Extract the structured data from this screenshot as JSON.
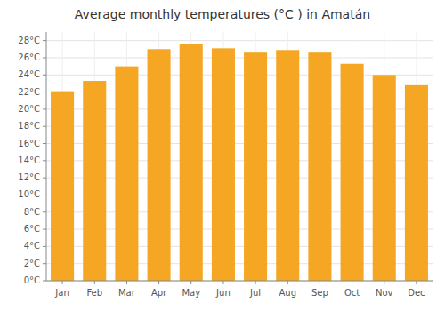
{
  "chart_data": {
    "type": "bar",
    "title": "Average monthly temperatures (°C ) in Amatán",
    "categories": [
      "Jan",
      "Feb",
      "Mar",
      "Apr",
      "May",
      "Jun",
      "Jul",
      "Aug",
      "Sep",
      "Oct",
      "Nov",
      "Dec"
    ],
    "values": [
      22.1,
      23.3,
      25.0,
      27.0,
      27.6,
      27.1,
      26.6,
      26.9,
      26.6,
      25.3,
      24.0,
      22.8
    ],
    "color": "#F5A623",
    "ylim": [
      0,
      29
    ],
    "yticks": [
      {
        "value": 0,
        "label": "0°C"
      },
      {
        "value": 2,
        "label": "2°C"
      },
      {
        "value": 4,
        "label": "4°C"
      },
      {
        "value": 6,
        "label": "6°C"
      },
      {
        "value": 8,
        "label": "8°C"
      },
      {
        "value": 10,
        "label": "10°C"
      },
      {
        "value": 12,
        "label": "12°C"
      },
      {
        "value": 14,
        "label": "14°C"
      },
      {
        "value": 16,
        "label": "16°C"
      },
      {
        "value": 18,
        "label": "18°C"
      },
      {
        "value": 20,
        "label": "20°C"
      },
      {
        "value": 22,
        "label": "22°C"
      },
      {
        "value": 24,
        "label": "24°C"
      },
      {
        "value": 26,
        "label": "26°C"
      },
      {
        "value": 28,
        "label": "28°C"
      }
    ],
    "grid": true
  }
}
